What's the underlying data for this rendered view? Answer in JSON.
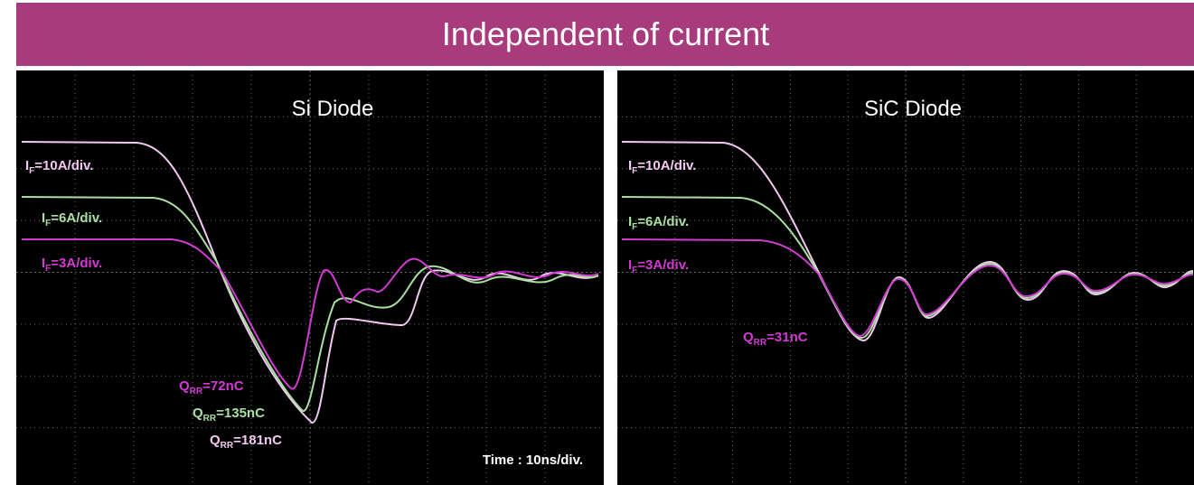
{
  "header": {
    "title": "Independent of current"
  },
  "panels": [
    {
      "title": "Si Diode",
      "labels": [
        {
          "main": "I",
          "sub": "F",
          "rest": "=10A/div."
        },
        {
          "main": "I",
          "sub": "F",
          "rest": "=6A/div."
        },
        {
          "main": "I",
          "sub": "F",
          "rest": "=3A/div."
        }
      ],
      "charges": [
        {
          "main": "Q",
          "sub": "RR",
          "rest": "=72nC"
        },
        {
          "main": "Q",
          "sub": "RR",
          "rest": "=135nC"
        },
        {
          "main": "Q",
          "sub": "RR",
          "rest": "=181nC"
        }
      ],
      "note": "Time : 10ns/div."
    },
    {
      "title": "SiC Diode",
      "labels": [
        {
          "main": "I",
          "sub": "F",
          "rest": "=10A/div."
        },
        {
          "main": "I",
          "sub": "F",
          "rest": "=6A/div."
        },
        {
          "main": "I",
          "sub": "F",
          "rest": "=3A/div."
        }
      ],
      "charges": [
        {
          "main": "Q",
          "sub": "RR",
          "rest": "=31nC"
        }
      ]
    }
  ]
}
